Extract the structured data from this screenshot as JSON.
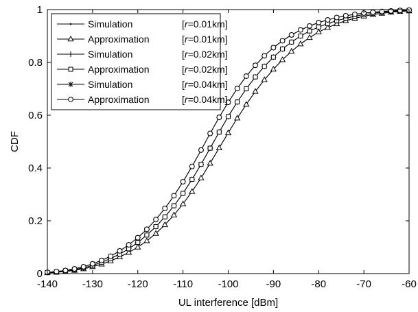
{
  "chart_data": {
    "type": "line",
    "title": "",
    "xlabel": "UL interference [dBm]",
    "ylabel": "CDF",
    "xlim": [
      -140,
      -60
    ],
    "ylim": [
      0,
      1
    ],
    "xticks": [
      -140,
      -130,
      -120,
      -110,
      -100,
      -90,
      -80,
      -70,
      -60
    ],
    "xtick_labels": [
      "-140",
      "-130",
      "-120",
      "-110",
      "-100",
      "-90",
      "-80",
      "-70",
      "-60"
    ],
    "yticks": [
      0,
      0.2,
      0.4,
      0.6,
      0.8,
      1
    ],
    "ytick_labels": [
      "0",
      "0.2",
      "0.4",
      "0.6",
      "0.8",
      "1"
    ],
    "grid": false,
    "legend_position": "top-left",
    "x": [
      -140,
      -138,
      -136,
      -134,
      -132,
      -130,
      -128,
      -126,
      -124,
      -122,
      -120,
      -118,
      -116,
      -114,
      -112,
      -110,
      -108,
      -106,
      -104,
      -102,
      -100,
      -98,
      -96,
      -94,
      -92,
      -90,
      -88,
      -86,
      -84,
      -82,
      -80,
      -78,
      -76,
      -74,
      -72,
      -70,
      -68,
      -66,
      -64,
      -62,
      -60
    ],
    "series": [
      {
        "name": "Simulation        [r=0.01km]",
        "label_parts": [
          "Simulation",
          "[",
          "r",
          "=0.01km]"
        ],
        "marker": "dot",
        "values": [
          0.003,
          0.005,
          0.008,
          0.012,
          0.018,
          0.026,
          0.036,
          0.048,
          0.063,
          0.08,
          0.1,
          0.124,
          0.152,
          0.185,
          0.222,
          0.264,
          0.311,
          0.362,
          0.418,
          0.476,
          0.533,
          0.589,
          0.641,
          0.69,
          0.734,
          0.774,
          0.81,
          0.842,
          0.87,
          0.894,
          0.915,
          0.932,
          0.946,
          0.958,
          0.967,
          0.975,
          0.981,
          0.986,
          0.99,
          0.993,
          0.995
        ]
      },
      {
        "name": "Approximation [r=0.01km]",
        "label_parts": [
          "Approximation",
          "[",
          "r",
          "=0.01km]"
        ],
        "marker": "triangle",
        "values": [
          0.003,
          0.005,
          0.008,
          0.012,
          0.018,
          0.026,
          0.036,
          0.048,
          0.063,
          0.08,
          0.1,
          0.124,
          0.152,
          0.185,
          0.222,
          0.264,
          0.311,
          0.362,
          0.418,
          0.476,
          0.533,
          0.589,
          0.641,
          0.69,
          0.734,
          0.774,
          0.81,
          0.842,
          0.87,
          0.894,
          0.915,
          0.932,
          0.946,
          0.958,
          0.967,
          0.975,
          0.981,
          0.986,
          0.99,
          0.993,
          0.995
        ]
      },
      {
        "name": "Simulation        [r=0.02km]",
        "label_parts": [
          "Simulation",
          "[",
          "r",
          "=0.02km]"
        ],
        "marker": "plus",
        "values": [
          0.004,
          0.006,
          0.01,
          0.015,
          0.022,
          0.031,
          0.043,
          0.057,
          0.074,
          0.094,
          0.118,
          0.146,
          0.178,
          0.215,
          0.257,
          0.304,
          0.357,
          0.414,
          0.475,
          0.536,
          0.595,
          0.65,
          0.7,
          0.745,
          0.785,
          0.82,
          0.851,
          0.877,
          0.9,
          0.919,
          0.934,
          0.947,
          0.958,
          0.967,
          0.975,
          0.981,
          0.986,
          0.99,
          0.993,
          0.995,
          0.997
        ]
      },
      {
        "name": "Approximation [r=0.02km]",
        "label_parts": [
          "Approximation",
          "[",
          "r",
          "=0.02km]"
        ],
        "marker": "square",
        "values": [
          0.004,
          0.006,
          0.01,
          0.015,
          0.022,
          0.031,
          0.043,
          0.057,
          0.074,
          0.094,
          0.118,
          0.146,
          0.178,
          0.215,
          0.257,
          0.304,
          0.357,
          0.414,
          0.475,
          0.536,
          0.595,
          0.65,
          0.7,
          0.745,
          0.785,
          0.82,
          0.851,
          0.877,
          0.9,
          0.919,
          0.934,
          0.947,
          0.958,
          0.967,
          0.975,
          0.981,
          0.986,
          0.99,
          0.993,
          0.995,
          0.997
        ]
      },
      {
        "name": "Simulation        [r=0.04km]",
        "label_parts": [
          "Simulation",
          "[",
          "r",
          "=0.04km]"
        ],
        "marker": "star",
        "values": [
          0.005,
          0.008,
          0.012,
          0.018,
          0.026,
          0.037,
          0.05,
          0.066,
          0.086,
          0.109,
          0.136,
          0.168,
          0.205,
          0.247,
          0.295,
          0.348,
          0.406,
          0.468,
          0.531,
          0.592,
          0.649,
          0.701,
          0.748,
          0.789,
          0.825,
          0.856,
          0.882,
          0.904,
          0.923,
          0.938,
          0.951,
          0.961,
          0.97,
          0.977,
          0.982,
          0.987,
          0.99,
          0.993,
          0.995,
          0.997,
          0.998
        ]
      },
      {
        "name": "Approximation [r=0.04km]",
        "label_parts": [
          "Approximation",
          "[",
          "r",
          "=0.04km]"
        ],
        "marker": "circle",
        "values": [
          0.005,
          0.008,
          0.012,
          0.018,
          0.026,
          0.037,
          0.05,
          0.066,
          0.086,
          0.109,
          0.136,
          0.168,
          0.205,
          0.247,
          0.295,
          0.348,
          0.406,
          0.468,
          0.531,
          0.592,
          0.649,
          0.701,
          0.748,
          0.789,
          0.825,
          0.856,
          0.882,
          0.904,
          0.923,
          0.938,
          0.951,
          0.961,
          0.97,
          0.977,
          0.982,
          0.987,
          0.99,
          0.993,
          0.995,
          0.997,
          0.998
        ]
      }
    ]
  }
}
